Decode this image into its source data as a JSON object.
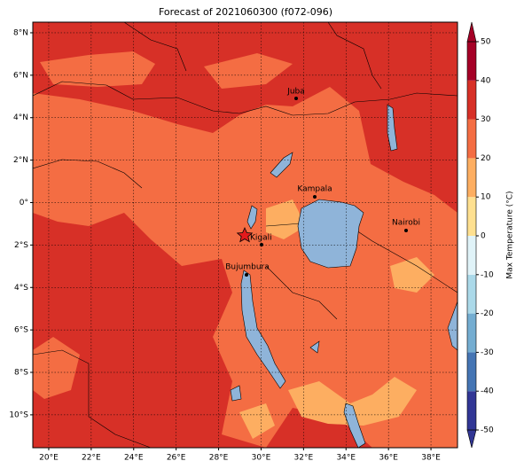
{
  "map": {
    "title": "Forecast of 2021060300 (f072-096)",
    "xlim": [
      19.25,
      39.25
    ],
    "ylim": [
      -11.55,
      8.5
    ],
    "xticks": [
      {
        "value": 20,
        "label": "20°E"
      },
      {
        "value": 22,
        "label": "22°E"
      },
      {
        "value": 24,
        "label": "24°E"
      },
      {
        "value": 26,
        "label": "26°E"
      },
      {
        "value": 28,
        "label": "28°E"
      },
      {
        "value": 30,
        "label": "30°E"
      },
      {
        "value": 32,
        "label": "32°E"
      },
      {
        "value": 34,
        "label": "34°E"
      },
      {
        "value": 36,
        "label": "36°E"
      },
      {
        "value": 38,
        "label": "38°E"
      }
    ],
    "yticks": [
      {
        "value": -10,
        "label": "10°S"
      },
      {
        "value": -8,
        "label": "8°S"
      },
      {
        "value": -6,
        "label": "6°S"
      },
      {
        "value": -4,
        "label": "4°S"
      },
      {
        "value": -2,
        "label": "2°S"
      },
      {
        "value": 0,
        "label": "0°"
      },
      {
        "value": 2,
        "label": "2°N"
      },
      {
        "value": 4,
        "label": "4°N"
      },
      {
        "value": 6,
        "label": "6°N"
      },
      {
        "value": 8,
        "label": "8°N"
      }
    ],
    "cities": [
      "Juba",
      "Kampala",
      "Nairobi",
      "Kigali",
      "Bujumbura"
    ],
    "colorbar": {
      "label": "Max Temperature (°C)",
      "ticks": [
        -50,
        -40,
        -30,
        -20,
        -10,
        0,
        10,
        20,
        30,
        40,
        50
      ],
      "colors": [
        "#313695",
        "#4575b4",
        "#74add1",
        "#abd9e9",
        "#e0f3f8",
        "#fee090",
        "#fdae61",
        "#f46d43",
        "#d73027",
        "#a50026"
      ]
    }
  }
}
